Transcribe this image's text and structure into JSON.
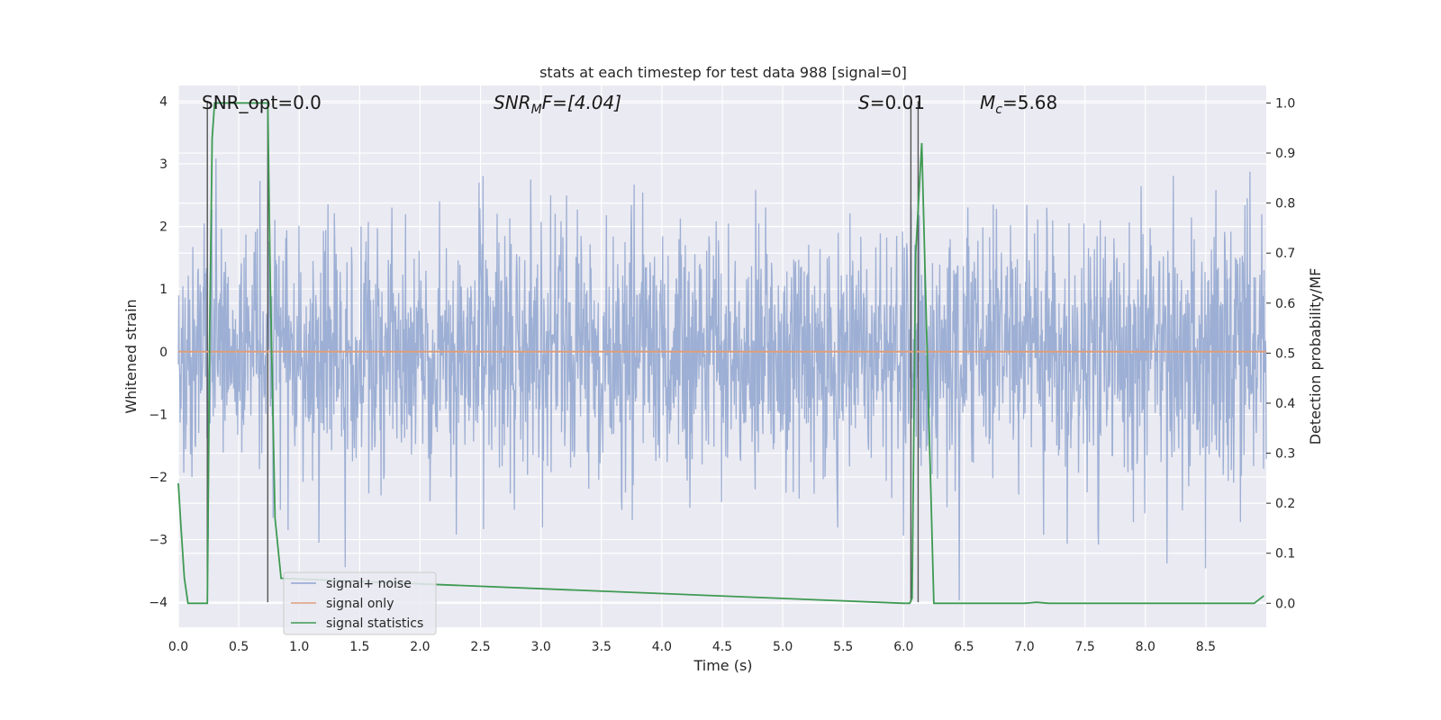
{
  "chart_data": {
    "type": "line",
    "title": "stats at each timestep for test data 988 [signal=0]",
    "xlabel": "Time (s)",
    "ylabel": "Whitened strain",
    "ylabel_right": "Detection probability/MF",
    "xlim": [
      0,
      9.0
    ],
    "ylim": [
      -4.4,
      4.25
    ],
    "ylim_right": [
      -0.048,
      1.035
    ],
    "xticks": [
      0.0,
      0.5,
      1.0,
      1.5,
      2.0,
      2.5,
      3.0,
      3.5,
      4.0,
      4.5,
      5.0,
      5.5,
      6.0,
      6.5,
      7.0,
      7.5,
      8.0,
      8.5
    ],
    "xtick_labels": [
      "0.0",
      "0.5",
      "1.0",
      "1.5",
      "2.0",
      "2.5",
      "3.0",
      "3.5",
      "4.0",
      "4.5",
      "5.0",
      "5.5",
      "6.0",
      "6.5",
      "7.0",
      "7.5",
      "8.0",
      "8.5"
    ],
    "yticks": [
      -4,
      -3,
      -2,
      -1,
      0,
      1,
      2,
      3,
      4
    ],
    "ytick_labels": [
      "−4",
      "−3",
      "−2",
      "−1",
      "0",
      "1",
      "2",
      "3",
      "4"
    ],
    "yticks_right": [
      0.0,
      0.1,
      0.2,
      0.3,
      0.4,
      0.5,
      0.6,
      0.7,
      0.8,
      0.9,
      1.0
    ],
    "ytick_labels_right": [
      "0.0",
      "0.1",
      "0.2",
      "0.3",
      "0.4",
      "0.5",
      "0.6",
      "0.7",
      "0.8",
      "0.9",
      "1.0"
    ],
    "grid": true,
    "legend_placement": "lower-left",
    "annotations": {
      "snr_opt": "SNR_opt=0.0",
      "snr_mf_base": "SNR",
      "snr_mf_sub": "M",
      "snr_mf_rest": "F=[4.04]",
      "s_var": "S",
      "s_rest": "=0.01",
      "mc_base": "M",
      "mc_sub": "c",
      "mc_rest": "=5.68"
    },
    "vlines_x": [
      0.24,
      0.74,
      6.06,
      6.12
    ],
    "series": [
      {
        "name": "signal+ noise",
        "color": "#8fa5cf",
        "axis": "left",
        "style": "noise",
        "x_range": [
          0,
          9.0
        ],
        "std": 1.0,
        "min": -4.0,
        "max": 3.9
      },
      {
        "name": "signal only",
        "color": "#dd9e7c",
        "axis": "left",
        "x": [
          0,
          9.0
        ],
        "y": [
          0,
          0
        ]
      },
      {
        "name": "signal statistics",
        "color": "#3e9a52",
        "axis": "right",
        "x": [
          0.0,
          0.02,
          0.05,
          0.08,
          0.12,
          0.2,
          0.24,
          0.26,
          0.28,
          0.3,
          0.4,
          0.55,
          0.7,
          0.74,
          0.76,
          0.8,
          0.85,
          6.0,
          6.05,
          6.07,
          6.1,
          6.15,
          6.2,
          6.25,
          6.3,
          7.0,
          7.1,
          7.2,
          8.5,
          8.9,
          8.98
        ],
        "y": [
          0.24,
          0.16,
          0.05,
          0.0,
          0.0,
          0.0,
          0.0,
          0.55,
          0.93,
          1.0,
          1.0,
          1.0,
          1.0,
          1.0,
          0.65,
          0.17,
          0.05,
          0.0,
          0.0,
          0.01,
          0.7,
          0.92,
          0.45,
          0.0,
          0.0,
          0.0,
          0.002,
          0.0,
          0.0,
          0.0,
          0.015
        ]
      }
    ]
  }
}
